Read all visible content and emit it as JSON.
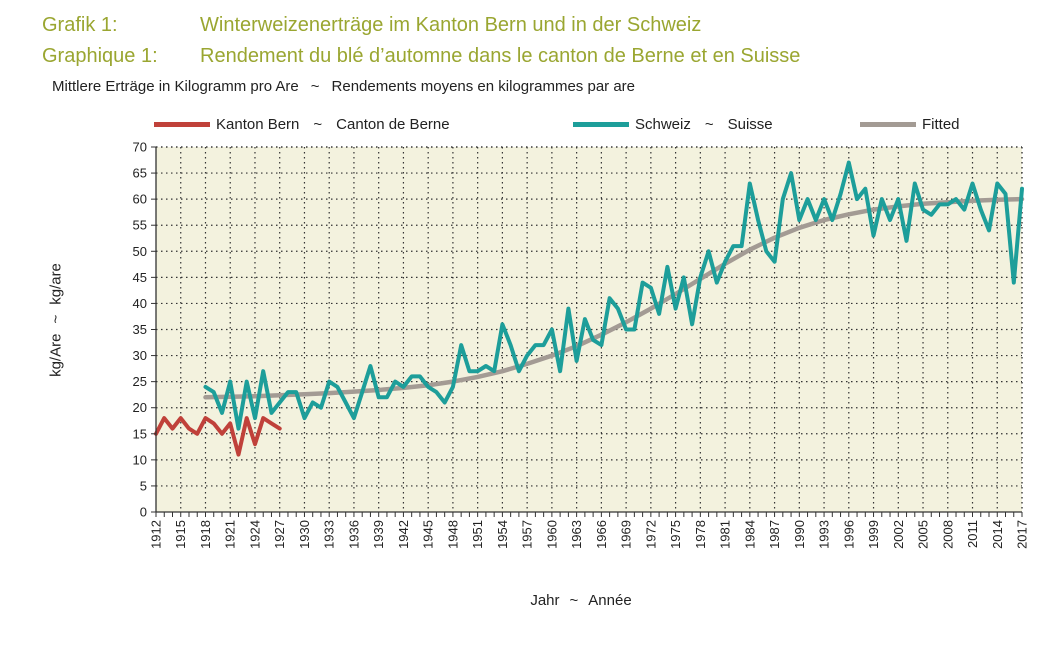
{
  "header": {
    "line1_label": "Grafik 1:",
    "line1_text": "Winterweizenerträge im Kanton Bern und in der Schweiz",
    "line2_label": "Graphique 1:",
    "line2_text": "Rendement du blé d’automne dans le canton de Berne et en Suisse",
    "subtitle_de": "Mittlere Erträge in Kilogramm pro Are",
    "subtitle_sep": "~",
    "subtitle_fr": "Rendements moyens en kilogrammes par are"
  },
  "legend": {
    "bern_de": "Kanton Bern",
    "bern_sep": "~",
    "bern_fr": "Canton de Berne",
    "ch_de": "Schweiz",
    "ch_sep": "~",
    "ch_fr": "Suisse",
    "fitted": "Fitted"
  },
  "axis": {
    "y_de": "kg/Are",
    "y_sep": "~",
    "y_fr": "kg/are",
    "x_de": "Jahr",
    "x_sep": "~",
    "x_fr": "Année"
  },
  "colors": {
    "bern": "#c0413a",
    "schweiz": "#1d9e9a",
    "fitted": "#a39b94",
    "plot_bg": "#f3f2de",
    "grid": "#333333",
    "title": "#9aa631"
  },
  "chart_data": {
    "type": "line",
    "ylim": [
      0,
      70
    ],
    "xlim": [
      1912,
      2017
    ],
    "y_ticks": [
      "0",
      "5",
      "10",
      "15",
      "20",
      "25",
      "30",
      "35",
      "40",
      "45",
      "50",
      "55",
      "60",
      "65",
      "70"
    ],
    "x_ticks": [
      "1912",
      "1915",
      "1918",
      "1921",
      "1924",
      "1927",
      "1930",
      "1933",
      "1936",
      "1939",
      "1942",
      "1945",
      "1948",
      "1951",
      "1954",
      "1957",
      "1960",
      "1963",
      "1966",
      "1969",
      "1972",
      "1975",
      "1978",
      "1981",
      "1984",
      "1987",
      "1990",
      "1993",
      "1996",
      "1999",
      "2002",
      "2005",
      "2008",
      "2011",
      "2014",
      "2017"
    ],
    "grid": true,
    "legend_position": "top",
    "series": [
      {
        "name": "Kanton Bern",
        "x": [
          1912,
          1913,
          1914,
          1915,
          1916,
          1917,
          1918,
          1919,
          1920,
          1921,
          1922,
          1923,
          1924,
          1925,
          1926,
          1927
        ],
        "values": [
          15,
          18,
          16,
          18,
          16,
          15,
          18,
          17,
          15,
          17,
          11,
          18,
          13,
          18,
          17,
          16
        ]
      },
      {
        "name": "Schweiz",
        "x": [
          1918,
          1919,
          1920,
          1921,
          1922,
          1923,
          1924,
          1925,
          1926,
          1927,
          1928,
          1929,
          1930,
          1931,
          1932,
          1933,
          1934,
          1935,
          1936,
          1937,
          1938,
          1939,
          1940,
          1941,
          1942,
          1943,
          1944,
          1945,
          1946,
          1947,
          1948,
          1949,
          1950,
          1951,
          1952,
          1953,
          1954,
          1955,
          1956,
          1957,
          1958,
          1959,
          1960,
          1961,
          1962,
          1963,
          1964,
          1965,
          1966,
          1967,
          1968,
          1969,
          1970,
          1971,
          1972,
          1973,
          1974,
          1975,
          1976,
          1977,
          1978,
          1979,
          1980,
          1981,
          1982,
          1983,
          1984,
          1985,
          1986,
          1987,
          1988,
          1989,
          1990,
          1991,
          1992,
          1993,
          1994,
          1995,
          1996,
          1997,
          1998,
          1999,
          2000,
          2001,
          2002,
          2003,
          2004,
          2005,
          2006,
          2007,
          2008,
          2009,
          2010,
          2011,
          2012,
          2013,
          2014,
          2015,
          2016,
          2017
        ],
        "values": [
          24,
          23,
          19,
          25,
          16,
          25,
          18,
          27,
          19,
          21,
          23,
          23,
          18,
          21,
          20,
          25,
          24,
          21,
          18,
          23,
          28,
          22,
          22,
          25,
          24,
          26,
          26,
          24,
          23,
          21,
          24,
          32,
          27,
          27,
          28,
          27,
          36,
          32,
          27,
          30,
          32,
          32,
          35,
          27,
          39,
          29,
          37,
          33,
          32,
          41,
          39,
          35,
          35,
          44,
          43,
          38,
          47,
          39,
          45,
          36,
          45,
          50,
          44,
          48,
          51,
          51,
          63,
          56,
          50,
          48,
          60,
          65,
          56,
          60,
          56,
          60,
          56,
          61,
          67,
          60,
          62,
          53,
          60,
          56,
          60,
          52,
          63,
          58,
          57,
          59,
          59,
          60,
          58,
          63,
          58,
          54,
          63,
          61,
          44,
          62
        ]
      },
      {
        "name": "Fitted",
        "x": [
          1918,
          1921,
          1924,
          1927,
          1930,
          1933,
          1936,
          1939,
          1942,
          1945,
          1948,
          1951,
          1954,
          1957,
          1960,
          1963,
          1966,
          1969,
          1972,
          1975,
          1978,
          1981,
          1984,
          1987,
          1990,
          1993,
          1996,
          1999,
          2002,
          2005,
          2008,
          2011,
          2014,
          2017
        ],
        "values": [
          22,
          22.1,
          22.2,
          22.4,
          22.6,
          22.8,
          23.1,
          23.4,
          23.8,
          24.3,
          25,
          25.9,
          27,
          28.4,
          30,
          31.8,
          34,
          36.4,
          39,
          41.8,
          44.7,
          47.6,
          50.3,
          52.6,
          54.5,
          56,
          57.1,
          58,
          58.6,
          59.1,
          59.4,
          59.7,
          59.9,
          60
        ]
      }
    ]
  }
}
